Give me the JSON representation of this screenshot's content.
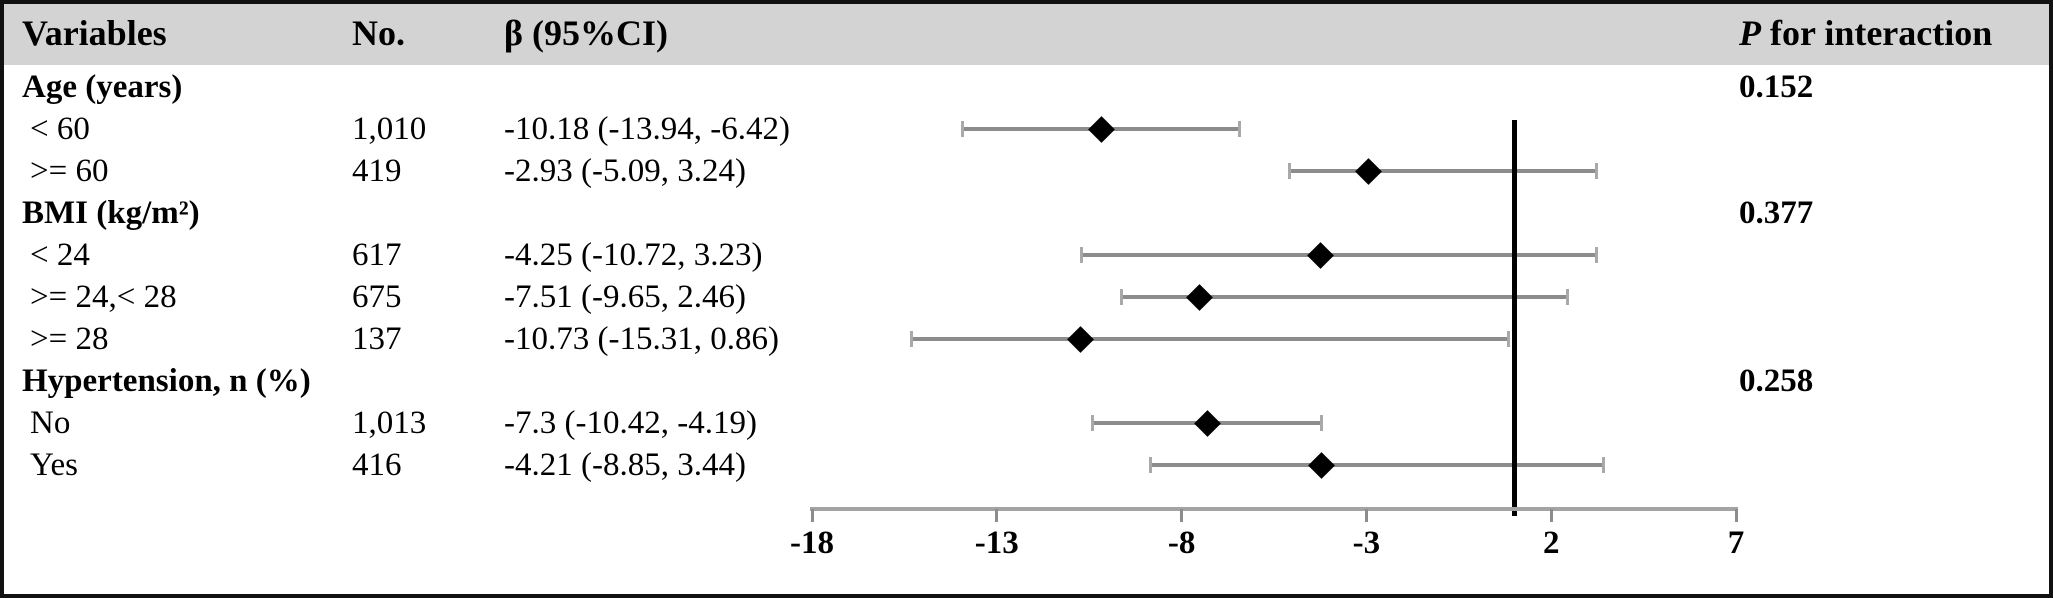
{
  "header": {
    "variables": "Variables",
    "no": "No.",
    "beta_ci": "β (95%CI)",
    "p_label": "P",
    "p_rest": " for interaction"
  },
  "colors": {
    "header_bg": "#d3d3d3",
    "whisker": "#8c8c8c",
    "whisker_cap": "#a9a9a9",
    "diamond": "#000000",
    "axis": "#a3a3a3",
    "tick": "#8c8c8c",
    "reference_line": "#000000"
  },
  "chart_data": {
    "type": "forest",
    "x_range": [
      -18,
      7
    ],
    "x_ticks": [
      "-18",
      "-13",
      "-8",
      "-3",
      "2",
      "7"
    ],
    "x_tick_values": [
      -18,
      -13,
      -8,
      -3,
      2,
      7
    ],
    "reference_line_x": 1,
    "legend": "none",
    "groups": [
      {
        "label": "Age (years)",
        "p_interaction": "0.152",
        "rows": [
          {
            "label": "< 60",
            "n": "1,010",
            "ci_text": "-10.18 (-13.94, -6.42)",
            "est": -10.18,
            "lo": -13.94,
            "hi": -6.42
          },
          {
            "label": ">= 60",
            "n": "419",
            "ci_text": "-2.93 (-5.09, 3.24)",
            "est": -2.93,
            "lo": -5.09,
            "hi": 3.24
          }
        ]
      },
      {
        "label": "BMI (kg/m²)",
        "p_interaction": "0.377",
        "rows": [
          {
            "label": "< 24",
            "n": "617",
            "ci_text": "-4.25 (-10.72, 3.23)",
            "est": -4.25,
            "lo": -10.72,
            "hi": 3.23
          },
          {
            "label": ">= 24,< 28",
            "n": "675",
            "ci_text": "-7.51 (-9.65, 2.46)",
            "est": -7.51,
            "lo": -9.65,
            "hi": 2.46
          },
          {
            "label": ">= 28",
            "n": "137",
            "ci_text": "-10.73 (-15.31, 0.86)",
            "est": -10.73,
            "lo": -15.31,
            "hi": 0.86
          }
        ]
      },
      {
        "label": "Hypertension, n (%)",
        "p_interaction": "0.258",
        "rows": [
          {
            "label": "No",
            "n": "1,013",
            "ci_text": "-7.3 (-10.42, -4.19)",
            "est": -7.3,
            "lo": -10.42,
            "hi": -4.19
          },
          {
            "label": "Yes",
            "n": "416",
            "ci_text": "-4.21 (-8.85, 3.44)",
            "est": -4.21,
            "lo": -8.85,
            "hi": 3.44
          }
        ]
      }
    ]
  }
}
